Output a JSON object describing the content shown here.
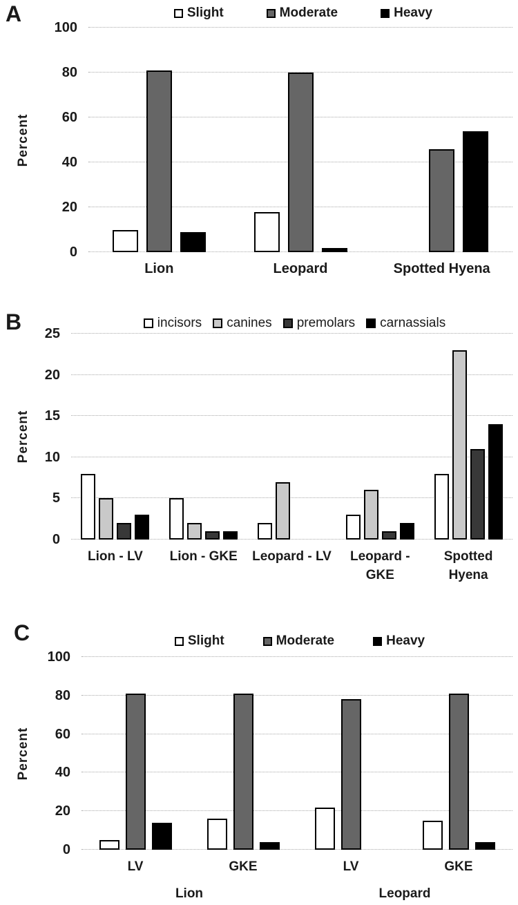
{
  "ylabel_shared": "Percent",
  "chart_data": [
    {
      "panel": "A",
      "type": "bar",
      "title": "",
      "xlabel": "",
      "ylabel": "Percent",
      "ylim": [
        0,
        100
      ],
      "yticks": [
        0,
        20,
        40,
        60,
        80,
        100
      ],
      "grid": true,
      "legend_position": "top",
      "categories": [
        "Lion",
        "Leopard",
        "Spotted Hyena"
      ],
      "series": [
        {
          "name": "Slight",
          "color": "#ffffff",
          "values": [
            10,
            18,
            0
          ]
        },
        {
          "name": "Moderate",
          "color": "#666666",
          "values": [
            81,
            80,
            46
          ]
        },
        {
          "name": "Heavy",
          "color": "#000000",
          "values": [
            9,
            2,
            54
          ]
        }
      ]
    },
    {
      "panel": "B",
      "type": "bar",
      "title": "",
      "xlabel": "",
      "ylabel": "Percent",
      "ylim": [
        0,
        25
      ],
      "yticks": [
        0,
        5,
        10,
        15,
        20,
        25
      ],
      "grid": true,
      "legend_position": "top",
      "categories": [
        "Lion - LV",
        "Lion - GKE",
        "Leopard - LV",
        "Leopard - GKE",
        "Spotted Hyena"
      ],
      "series": [
        {
          "name": "incisors",
          "color": "#ffffff",
          "values": [
            8,
            5,
            2,
            3,
            8
          ]
        },
        {
          "name": "canines",
          "color": "#c9c9c9",
          "values": [
            5,
            2,
            7,
            6,
            23
          ]
        },
        {
          "name": "premolars",
          "color": "#383838",
          "values": [
            2,
            1,
            0,
            1,
            11
          ]
        },
        {
          "name": "carnassials",
          "color": "#000000",
          "values": [
            3,
            1,
            0,
            2,
            14
          ]
        }
      ]
    },
    {
      "panel": "C",
      "type": "bar",
      "title": "",
      "xlabel": "",
      "ylabel": "Percent",
      "ylim": [
        0,
        100
      ],
      "yticks": [
        0,
        20,
        40,
        60,
        80,
        100
      ],
      "grid": true,
      "legend_position": "top",
      "categories": [
        "LV",
        "GKE",
        "LV",
        "GKE"
      ],
      "group_labels": [
        {
          "label": "Lion",
          "span": 2
        },
        {
          "label": "Leopard",
          "span": 2
        }
      ],
      "series": [
        {
          "name": "Slight",
          "color": "#ffffff",
          "values": [
            5,
            16,
            22,
            15
          ]
        },
        {
          "name": "Moderate",
          "color": "#666666",
          "values": [
            81,
            81,
            78,
            81
          ]
        },
        {
          "name": "Heavy",
          "color": "#000000",
          "values": [
            14,
            4,
            0,
            4
          ]
        }
      ]
    }
  ]
}
